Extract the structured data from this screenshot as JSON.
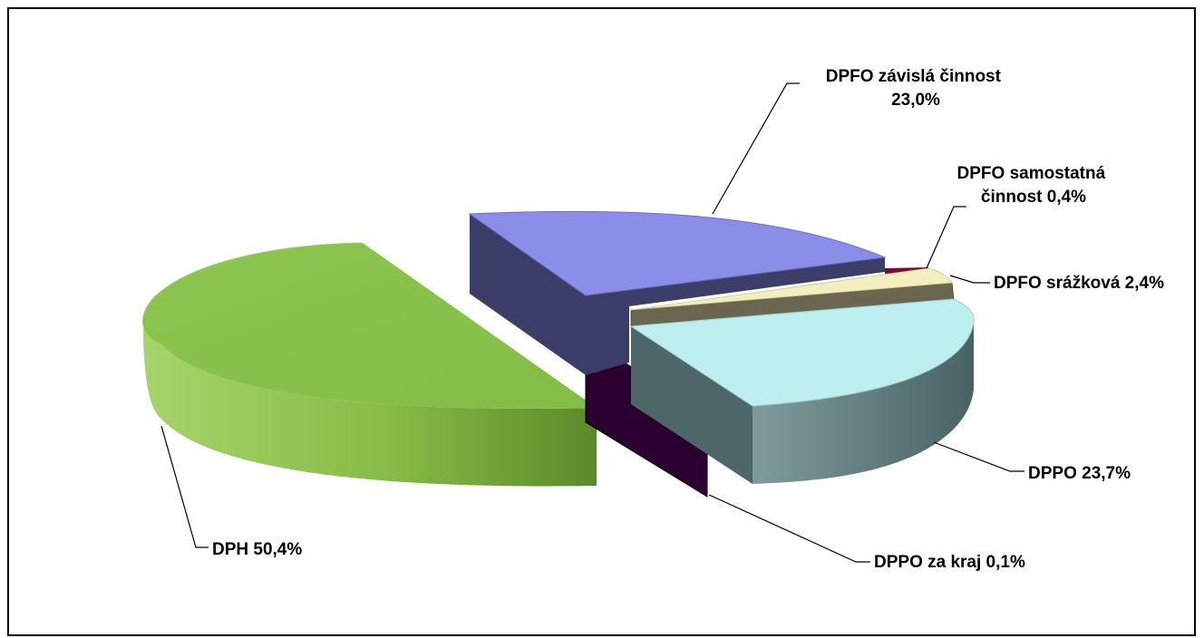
{
  "chart_data": {
    "type": "pie",
    "title": "",
    "style": "3d-exploded",
    "slices": [
      {
        "label_lines": [
          "DPH 50,4%"
        ],
        "value": 50.4,
        "color": "#8bc34a"
      },
      {
        "label_lines": [
          "DPFO závislá činnost",
          "23,0%"
        ],
        "value": 23.0,
        "color": "#8a8ee8"
      },
      {
        "label_lines": [
          "DPFO samostatná",
          "činnost 0,4%"
        ],
        "value": 0.4,
        "color": "#7a0a3a"
      },
      {
        "label_lines": [
          "DPFO srážková 2,4%"
        ],
        "value": 2.4,
        "color": "#f3eebd"
      },
      {
        "label_lines": [
          "DPPO 23,7%"
        ],
        "value": 23.7,
        "color": "#bdeef0"
      },
      {
        "label_lines": [
          "DPPO za kraj 0,1%"
        ],
        "value": 0.1,
        "color": "#2b0030"
      }
    ],
    "legend": "none"
  }
}
